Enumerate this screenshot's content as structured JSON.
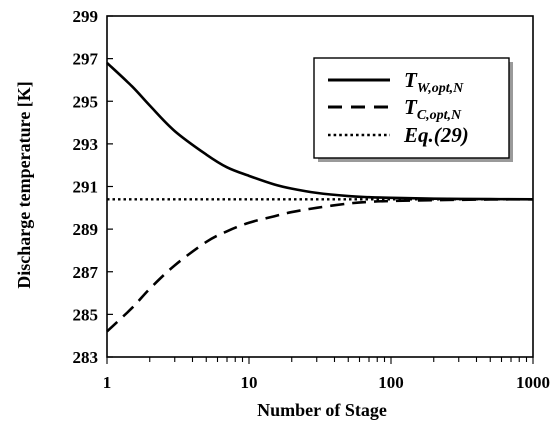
{
  "chart_data": {
    "type": "line",
    "title": "",
    "xlabel": "Number of Stage",
    "ylabel": "Discharge temperature [K]",
    "x_scale": "log",
    "xlim": [
      1,
      1000
    ],
    "ylim": [
      283,
      299
    ],
    "x_ticks": [
      1,
      10,
      100,
      1000
    ],
    "x_tick_labels": [
      "1",
      "10",
      "100",
      "1000"
    ],
    "y_ticks": [
      283,
      285,
      287,
      289,
      291,
      293,
      295,
      297,
      299
    ],
    "y_tick_labels": [
      "283",
      "285",
      "287",
      "289",
      "291",
      "293",
      "295",
      "297",
      "299"
    ],
    "grid": false,
    "legend_position": "top-right",
    "series": [
      {
        "name": "T_W,opt,N",
        "legend_main": "T",
        "legend_sub": "W,opt,N",
        "style": "solid",
        "color": "#000000",
        "x": [
          1,
          1.5,
          2,
          3,
          5,
          7,
          10,
          15,
          20,
          30,
          50,
          70,
          100,
          200,
          500,
          1000
        ],
        "y": [
          296.8,
          295.7,
          294.8,
          293.6,
          292.5,
          291.9,
          291.5,
          291.1,
          290.9,
          290.7,
          290.55,
          290.5,
          290.47,
          290.43,
          290.41,
          290.4
        ]
      },
      {
        "name": "T_C,opt,N",
        "legend_main": "T",
        "legend_sub": "C,opt,N",
        "style": "dashed",
        "color": "#000000",
        "x": [
          1,
          1.5,
          2,
          3,
          5,
          7,
          10,
          15,
          20,
          30,
          50,
          70,
          100,
          200,
          500,
          1000
        ],
        "y": [
          284.2,
          285.3,
          286.2,
          287.3,
          288.4,
          288.9,
          289.3,
          289.6,
          289.8,
          290.0,
          290.2,
          290.28,
          290.32,
          290.36,
          290.39,
          290.4
        ]
      },
      {
        "name": "Eq.(29)",
        "legend_main": "Eq.(29)",
        "legend_sub": "",
        "style": "dotted",
        "color": "#000000",
        "x": [
          1,
          1000
        ],
        "y": [
          290.4,
          290.4
        ]
      }
    ]
  }
}
